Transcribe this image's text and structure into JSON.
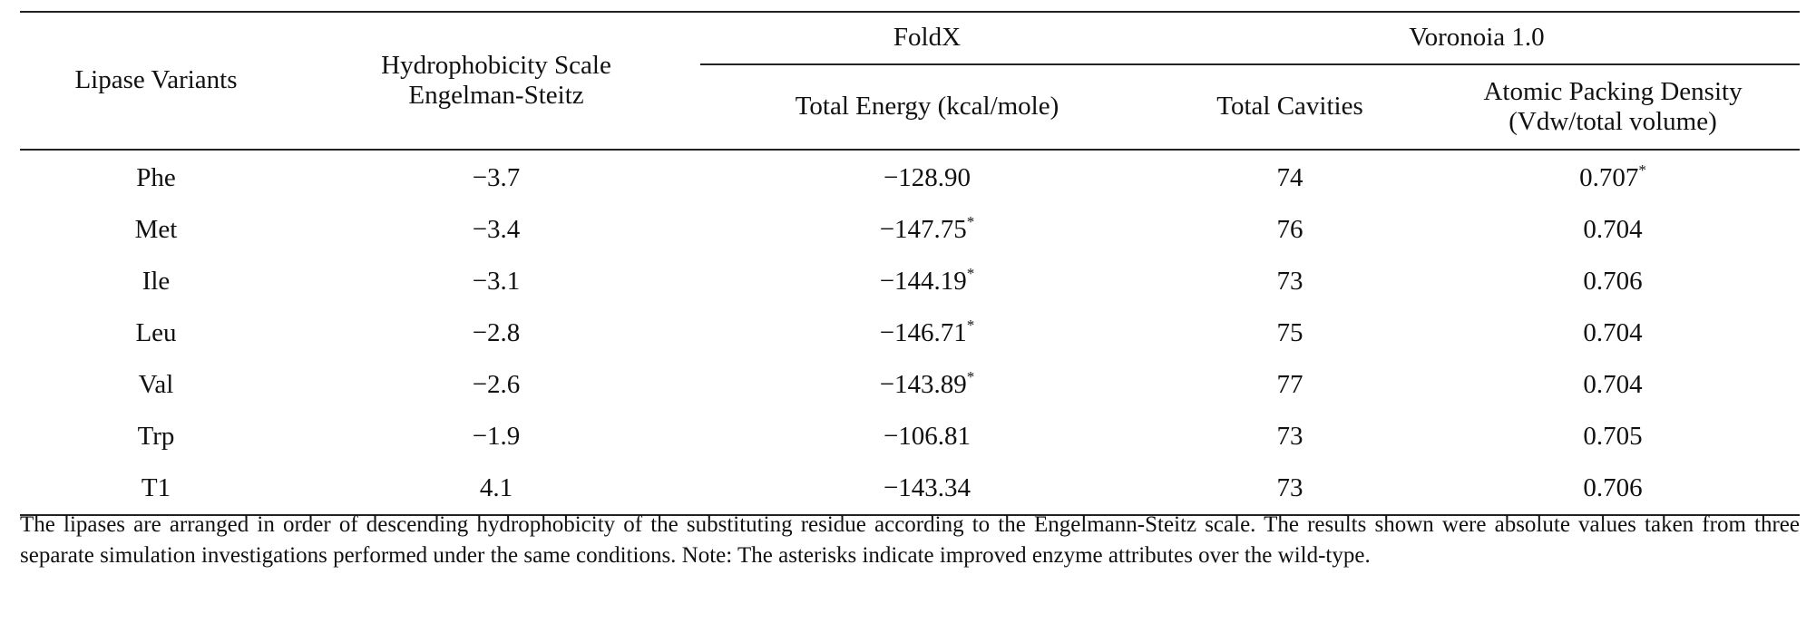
{
  "table": {
    "headers": {
      "variants": "Lipase Variants",
      "hydrophobicity": "Hydrophobicity Scale Engelman-Steitz",
      "foldx": "FoldX",
      "voronoia": "Voronoia 1.0",
      "total_energy": "Total Energy (kcal/mole)",
      "total_cavities": "Total Cavities",
      "packing_density_line1": "Atomic Packing Density",
      "packing_density_line2": "(Vdw/total volume)"
    },
    "rows": [
      {
        "variant": "Phe",
        "hydrophobicity": "−3.7",
        "total_energy": "−128.90",
        "energy_mark": "",
        "total_cavities": "74",
        "packing_density": "0.707",
        "density_mark": "*"
      },
      {
        "variant": "Met",
        "hydrophobicity": "−3.4",
        "total_energy": "−147.75",
        "energy_mark": "*",
        "total_cavities": "76",
        "packing_density": "0.704",
        "density_mark": ""
      },
      {
        "variant": "Ile",
        "hydrophobicity": "−3.1",
        "total_energy": "−144.19",
        "energy_mark": "*",
        "total_cavities": "73",
        "packing_density": "0.706",
        "density_mark": ""
      },
      {
        "variant": "Leu",
        "hydrophobicity": "−2.8",
        "total_energy": "−146.71",
        "energy_mark": "*",
        "total_cavities": "75",
        "packing_density": "0.704",
        "density_mark": ""
      },
      {
        "variant": "Val",
        "hydrophobicity": "−2.6",
        "total_energy": "−143.89",
        "energy_mark": "*",
        "total_cavities": "77",
        "packing_density": "0.704",
        "density_mark": ""
      },
      {
        "variant": "Trp",
        "hydrophobicity": "−1.9",
        "total_energy": "−106.81",
        "energy_mark": "",
        "total_cavities": "73",
        "packing_density": "0.705",
        "density_mark": ""
      },
      {
        "variant": "T1",
        "hydrophobicity": "4.1",
        "total_energy": "−143.34",
        "energy_mark": "",
        "total_cavities": "73",
        "packing_density": "0.706",
        "density_mark": ""
      }
    ]
  },
  "note": "The lipases are arranged in order of descending hydrophobicity of the substituting residue according to the Engelmann-Steitz scale. The results shown were absolute values taken from three separate simulation investigations performed under the same conditions. Note: The asterisks indicate improved enzyme attributes over the wild-type."
}
